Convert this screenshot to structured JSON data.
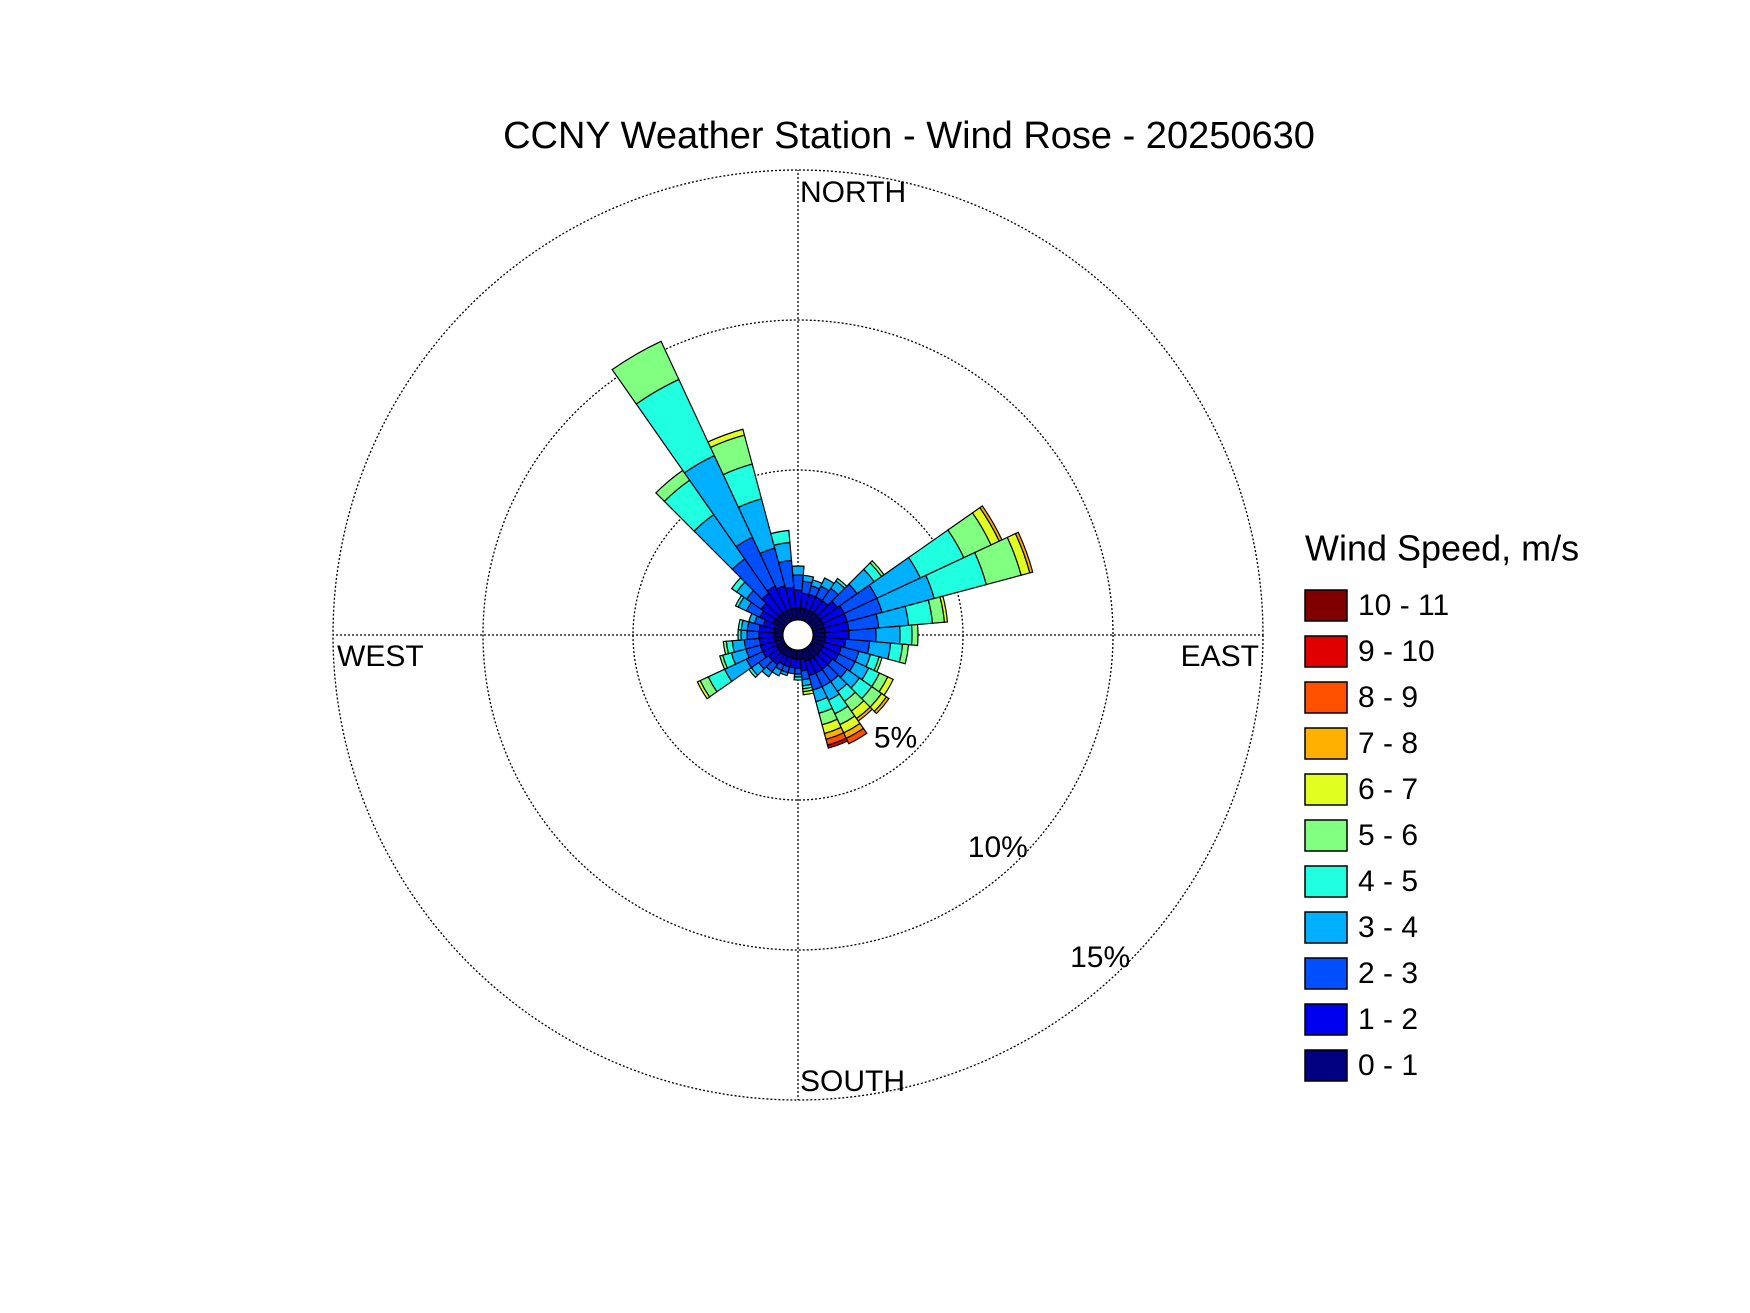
{
  "chart_data": {
    "type": "windrose",
    "title": "CCNY Weather Station - Wind Rose - 20250630",
    "legend_title": "Wind Speed, m/s",
    "direction_labels": [
      "NORTH",
      "EAST",
      "SOUTH",
      "WEST"
    ],
    "x": [
      0,
      10,
      20,
      30,
      40,
      50,
      60,
      70,
      80,
      90,
      100,
      110,
      120,
      130,
      140,
      150,
      160,
      170,
      180,
      190,
      200,
      210,
      220,
      230,
      240,
      250,
      260,
      270,
      280,
      290,
      300,
      310,
      320,
      330,
      340,
      350
    ],
    "rlim": [
      0,
      15
    ],
    "rticks": [
      {
        "value": 5,
        "label": "5%"
      },
      {
        "value": 10,
        "label": "10%"
      },
      {
        "value": 15,
        "label": "15%"
      }
    ],
    "grid": true,
    "series": [
      {
        "name": "0 - 1",
        "color": "#000080",
        "values": [
          0.4,
          0.4,
          0.4,
          0.4,
          0.4,
          0.4,
          0.4,
          0.4,
          0.4,
          0.4,
          0.4,
          0.4,
          0.4,
          0.4,
          0.4,
          0.4,
          0.4,
          0.3,
          0.3,
          0.3,
          0.3,
          0.3,
          0.3,
          0.3,
          0.3,
          0.3,
          0.3,
          0.3,
          0.3,
          0.3,
          0.4,
          0.4,
          0.4,
          0.4,
          0.4,
          0.4
        ]
      },
      {
        "name": "1 - 2",
        "color": "#0000f0",
        "values": [
          0.6,
          0.5,
          0.5,
          0.5,
          0.5,
          0.7,
          0.8,
          0.8,
          0.8,
          0.8,
          0.7,
          0.6,
          0.6,
          0.5,
          0.5,
          0.5,
          0.5,
          0.4,
          0.3,
          0.3,
          0.3,
          0.3,
          0.4,
          0.4,
          0.5,
          0.5,
          0.5,
          0.5,
          0.5,
          0.4,
          0.5,
          0.6,
          0.8,
          0.9,
          0.8,
          0.7
        ]
      },
      {
        "name": "2 - 3",
        "color": "#0050ff",
        "values": [
          0.5,
          0.4,
          0.3,
          0.4,
          0.5,
          0.8,
          1.2,
          1.2,
          1.0,
          0.9,
          0.8,
          0.6,
          0.6,
          0.6,
          0.5,
          0.5,
          0.5,
          0.3,
          0.2,
          0.2,
          0.2,
          0.2,
          0.3,
          0.4,
          0.6,
          0.5,
          0.5,
          0.4,
          0.4,
          0.3,
          0.5,
          0.6,
          1.4,
          1.8,
          1.3,
          0.9
        ]
      },
      {
        "name": "3 - 4",
        "color": "#00b0ff",
        "values": [
          0.3,
          0.2,
          0.2,
          0.3,
          0.3,
          0.7,
          1.6,
          1.8,
          1.0,
          0.8,
          0.7,
          0.4,
          0.5,
          0.5,
          0.4,
          0.5,
          0.4,
          0.2,
          0.1,
          0,
          0.1,
          0.2,
          0.2,
          0.3,
          0.8,
          0.5,
          0.4,
          0.2,
          0.2,
          0.2,
          0.3,
          0.4,
          1.8,
          3.0,
          1.7,
          0.6
        ]
      },
      {
        "name": "4 - 5",
        "color": "#20ffe0",
        "values": [
          0,
          0,
          0,
          0,
          0.1,
          0.3,
          1.6,
          1.8,
          0.8,
          0.4,
          0.4,
          0.3,
          0.4,
          0.5,
          0.4,
          0.5,
          0.4,
          0.1,
          0.1,
          0,
          0,
          0,
          0,
          0.1,
          0.6,
          0.3,
          0.2,
          0.1,
          0.1,
          0,
          0.1,
          0.2,
          1.4,
          2.8,
          1.2,
          0.4
        ]
      },
      {
        "name": "5 - 6",
        "color": "#80ff80",
        "values": [
          0,
          0,
          0,
          0,
          0,
          0.1,
          1.0,
          1.2,
          0.4,
          0.2,
          0.2,
          0.1,
          0.3,
          0.4,
          0.4,
          0.4,
          0.4,
          0.1,
          0,
          0,
          0,
          0,
          0,
          0,
          0.3,
          0.1,
          0.1,
          0,
          0,
          0,
          0,
          0,
          0.4,
          1.4,
          1.0,
          0
        ]
      },
      {
        "name": "6 - 7",
        "color": "#e0ff20",
        "values": [
          0,
          0,
          0,
          0,
          0,
          0,
          0.3,
          0.3,
          0.1,
          0,
          0,
          0,
          0.2,
          0.2,
          0.3,
          0.3,
          0.3,
          0.1,
          0,
          0,
          0,
          0,
          0,
          0,
          0.1,
          0,
          0,
          0,
          0,
          0,
          0,
          0,
          0,
          0,
          0.2,
          0
        ]
      },
      {
        "name": "7 - 8",
        "color": "#ffb000",
        "values": [
          0,
          0,
          0,
          0,
          0,
          0,
          0.1,
          0.1,
          0,
          0,
          0,
          0,
          0,
          0.1,
          0.1,
          0.2,
          0.2,
          0,
          0,
          0,
          0,
          0,
          0,
          0,
          0,
          0,
          0,
          0,
          0,
          0,
          0,
          0,
          0,
          0,
          0,
          0
        ]
      },
      {
        "name": "8 - 9",
        "color": "#ff5000",
        "values": [
          0,
          0,
          0,
          0,
          0,
          0,
          0,
          0,
          0,
          0,
          0,
          0,
          0,
          0,
          0,
          0.2,
          0.2,
          0,
          0,
          0,
          0,
          0,
          0,
          0,
          0,
          0,
          0,
          0,
          0,
          0,
          0,
          0,
          0,
          0,
          0,
          0
        ]
      },
      {
        "name": "9 - 10",
        "color": "#e00000",
        "values": [
          0,
          0,
          0,
          0,
          0,
          0,
          0,
          0,
          0,
          0,
          0,
          0,
          0,
          0,
          0,
          0,
          0.1,
          0,
          0,
          0,
          0,
          0,
          0,
          0,
          0,
          0,
          0,
          0,
          0,
          0,
          0,
          0,
          0,
          0,
          0,
          0
        ]
      },
      {
        "name": "10 - 11",
        "color": "#800000",
        "values": [
          0,
          0,
          0,
          0,
          0,
          0,
          0,
          0,
          0,
          0,
          0,
          0,
          0,
          0,
          0,
          0,
          0,
          0,
          0,
          0,
          0,
          0,
          0,
          0,
          0,
          0,
          0,
          0,
          0,
          0,
          0,
          0,
          0,
          0,
          0,
          0
        ]
      }
    ]
  }
}
